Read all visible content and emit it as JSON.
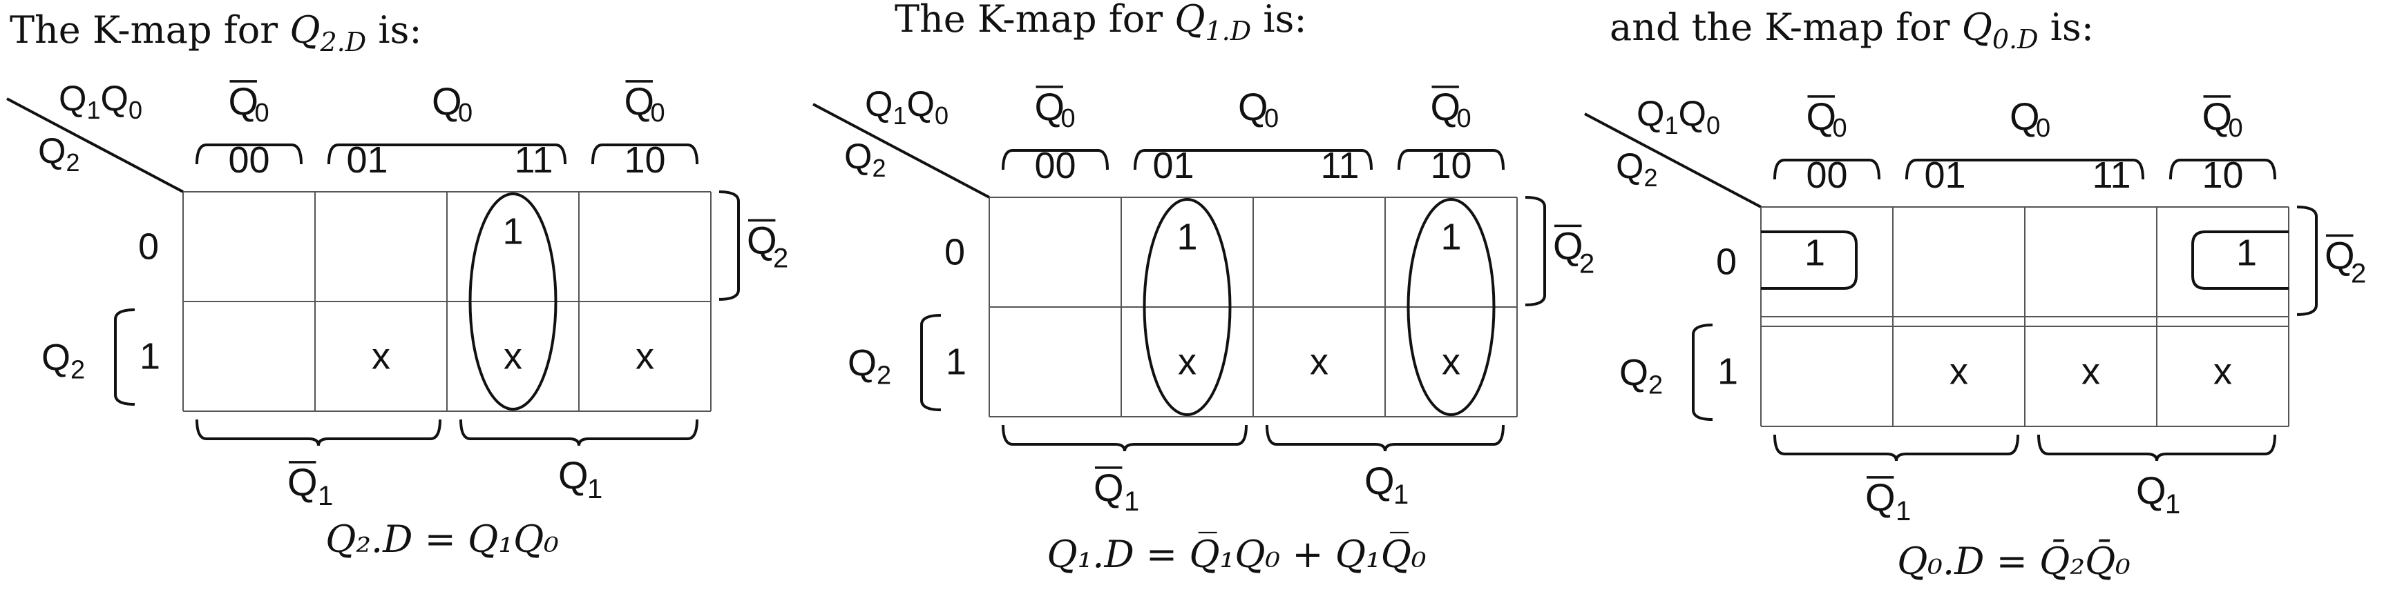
{
  "kmaps": [
    {
      "intro": "The K-map for ",
      "var_sym": "Q",
      "var_sub": "2.D",
      "intro_end": " is:",
      "corner_col": [
        "Q",
        "1",
        "Q",
        "0"
      ],
      "corner_row": [
        "Q",
        "2"
      ],
      "col_groups": [
        {
          "label": "Q",
          "sub": "0",
          "bar": true
        },
        {
          "label": "Q",
          "sub": "0",
          "bar": false
        },
        {
          "label": "Q",
          "sub": "0",
          "bar": true
        }
      ],
      "col_codes": [
        "00",
        "01",
        "11",
        "10"
      ],
      "row_labels": [
        "0",
        "1"
      ],
      "row_bar_label": [
        "Q",
        "2"
      ],
      "row_q2_label": [
        "Q",
        "2"
      ],
      "cells": [
        [
          "",
          "",
          "1",
          ""
        ],
        [
          "",
          "x",
          "x",
          "x"
        ]
      ],
      "bottom_groups": [
        {
          "label": "Q",
          "sub": "1",
          "bar": true
        },
        {
          "label": "Q",
          "sub": "1",
          "bar": false
        }
      ],
      "equation": "Q₂.D = Q₁Q₀"
    },
    {
      "intro": "The K-map for ",
      "var_sym": "Q",
      "var_sub": "1.D",
      "intro_end": " is:",
      "corner_col": [
        "Q",
        "1",
        "Q",
        "0"
      ],
      "corner_row": [
        "Q",
        "2"
      ],
      "col_groups": [
        {
          "label": "Q",
          "sub": "0",
          "bar": true
        },
        {
          "label": "Q",
          "sub": "0",
          "bar": false
        },
        {
          "label": "Q",
          "sub": "0",
          "bar": true
        }
      ],
      "col_codes": [
        "00",
        "01",
        "11",
        "10"
      ],
      "row_labels": [
        "0",
        "1"
      ],
      "row_bar_label": [
        "Q",
        "2"
      ],
      "row_q2_label": [
        "Q",
        "2"
      ],
      "cells": [
        [
          "",
          "1",
          "",
          "1"
        ],
        [
          "",
          "x",
          "x",
          "x"
        ]
      ],
      "bottom_groups": [
        {
          "label": "Q",
          "sub": "1",
          "bar": true
        },
        {
          "label": "Q",
          "sub": "1",
          "bar": false
        }
      ],
      "equation": "Q₁.D = Q̅₁Q₀ + Q₁Q̅₀"
    },
    {
      "intro": "and the K-map for ",
      "var_sym": "Q",
      "var_sub": "0.D",
      "intro_end": " is:",
      "corner_col": [
        "Q",
        "1",
        "Q",
        "0"
      ],
      "corner_row": [
        "Q",
        "2"
      ],
      "col_groups": [
        {
          "label": "Q",
          "sub": "0",
          "bar": true
        },
        {
          "label": "Q",
          "sub": "0",
          "bar": false
        },
        {
          "label": "Q",
          "sub": "0",
          "bar": true
        }
      ],
      "col_codes": [
        "00",
        "01",
        "11",
        "10"
      ],
      "row_labels": [
        "0",
        "1"
      ],
      "row_bar_label": [
        "Q",
        "2"
      ],
      "row_q2_label": [
        "Q",
        "2"
      ],
      "cells": [
        [
          "1",
          "",
          "",
          "1"
        ],
        [
          "",
          "x",
          "x",
          "x"
        ]
      ],
      "bottom_groups": [
        {
          "label": "Q",
          "sub": "1",
          "bar": true
        },
        {
          "label": "Q",
          "sub": "1",
          "bar": false
        }
      ],
      "equation": "Q₀.D = Q̄₂Q̄₀"
    }
  ],
  "colors": {
    "ink": "#111111",
    "grid": "#555555"
  }
}
